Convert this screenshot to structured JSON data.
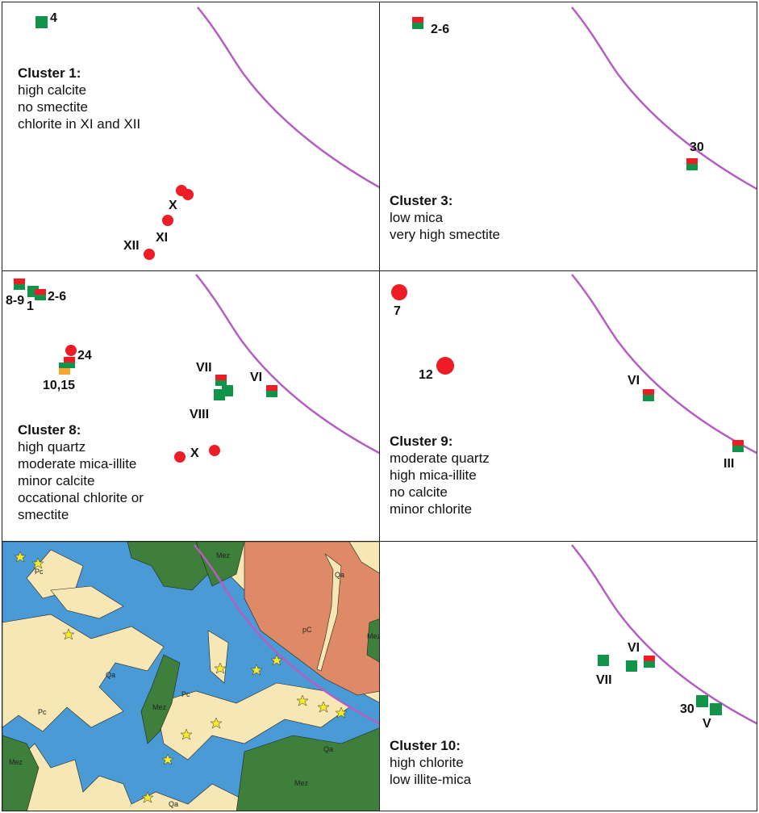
{
  "colors": {
    "red": "#ee1c25",
    "green": "#12934a",
    "orange": "#f7a431",
    "fault": "#b45ec2",
    "map_blue": "#4a9ad6",
    "map_tan": "#f7e7b4",
    "map_green": "#3d7f3b",
    "map_orange": "#df8a66",
    "star": "#f5ea2a"
  },
  "panels": {
    "p1": {
      "title": "Cluster 1:",
      "lines": [
        "high calcite",
        "no smectite",
        "chlorite in XI and XII"
      ],
      "labels": {
        "a": "4",
        "b": "X",
        "c": "XI",
        "d": "XII"
      }
    },
    "p3": {
      "title": "Cluster 3:",
      "lines": [
        "low mica",
        "very high smectite"
      ],
      "labels": {
        "a": "2-6",
        "b": "30"
      }
    },
    "p8": {
      "title": "Cluster 8:",
      "lines": [
        "high quartz",
        "moderate mica-illite",
        "minor calcite",
        "occational chlorite or",
        "smectite"
      ],
      "labels": {
        "a": "8-9",
        "b": "1",
        "c": "2-6",
        "d": "24",
        "e": "10,15",
        "f": "VII",
        "g": "VIII",
        "h": "VI",
        "i": "X"
      }
    },
    "p9": {
      "title": "Cluster 9:",
      "lines": [
        "moderate quartz",
        "high mica-illite",
        "no calcite",
        "minor chlorite"
      ],
      "labels": {
        "a": "7",
        "b": "12",
        "c": "VI",
        "d": "III"
      }
    },
    "map": {
      "labels": {
        "pc": "Pc",
        "mez": "Mez",
        "qa": "Qa",
        "pC": "pC"
      }
    },
    "p10": {
      "title": "Cluster 10:",
      "lines": [
        "high chlorite",
        "low illite-mica"
      ],
      "labels": {
        "a": "VI",
        "b": "VII",
        "c": "30",
        "d": "V"
      }
    }
  }
}
